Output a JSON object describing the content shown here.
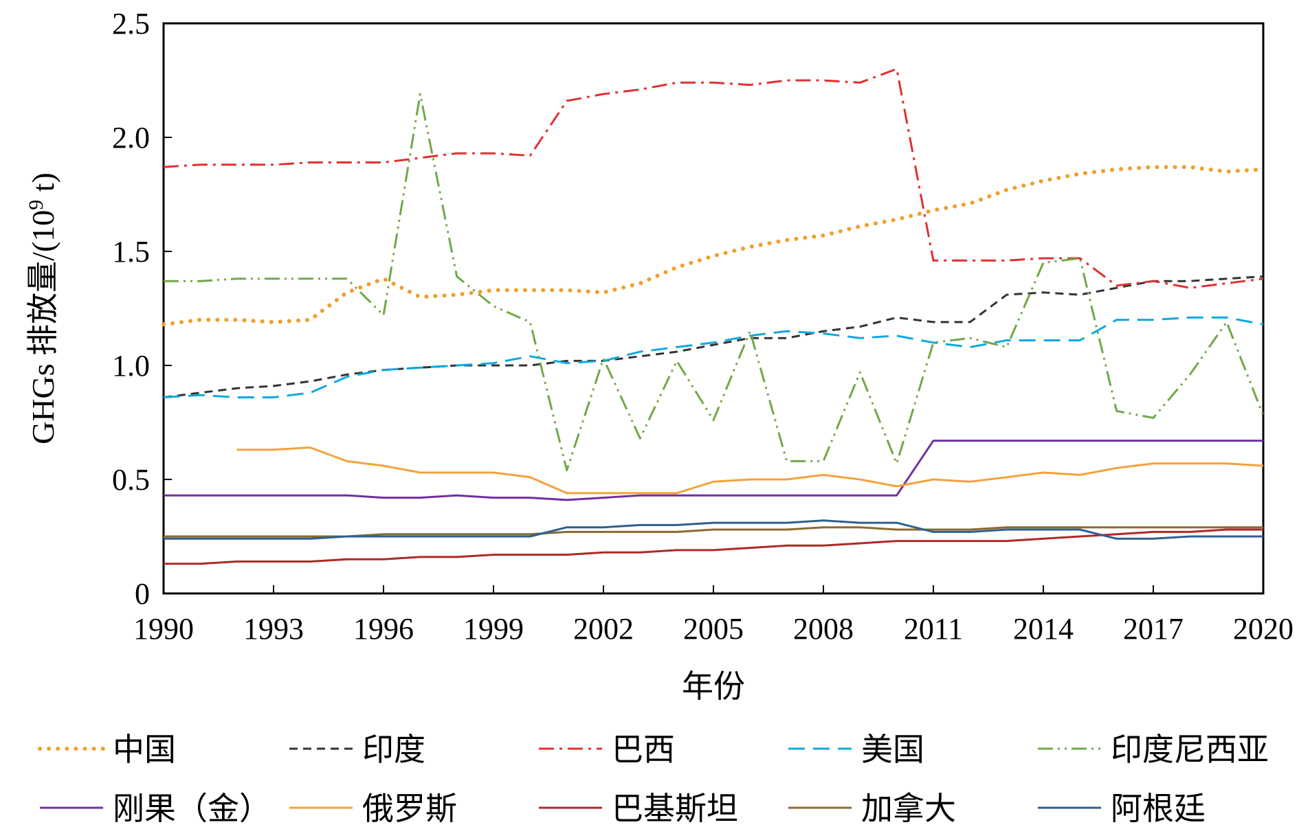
{
  "chart_data": {
    "type": "line",
    "xlabel": "年份",
    "ylabel_prefix": "GHGs 排放量/(10",
    "ylabel_sup": "9",
    "ylabel_suffix": " t)",
    "xlim": [
      1990,
      2020
    ],
    "ylim": [
      0,
      2.5
    ],
    "xticks": [
      "1990",
      "1993",
      "1996",
      "1999",
      "2002",
      "2005",
      "2008",
      "2011",
      "2014",
      "2017",
      "2020"
    ],
    "yticks": [
      "0",
      "0.5",
      "1.0",
      "1.5",
      "2.0",
      "2.5"
    ],
    "grid": false,
    "legend_position": "bottom",
    "x": [
      1990,
      1991,
      1992,
      1993,
      1994,
      1995,
      1996,
      1997,
      1998,
      1999,
      2000,
      2001,
      2002,
      2003,
      2004,
      2005,
      2006,
      2007,
      2008,
      2009,
      2010,
      2011,
      2012,
      2013,
      2014,
      2015,
      2016,
      2017,
      2018,
      2019,
      2020
    ],
    "series": [
      {
        "name": "中国",
        "color": "#F0A030",
        "dash": "dot",
        "values": [
          1.18,
          1.2,
          1.2,
          1.19,
          1.2,
          1.32,
          1.38,
          1.3,
          1.31,
          1.33,
          1.33,
          1.33,
          1.32,
          1.36,
          1.43,
          1.48,
          1.52,
          1.55,
          1.57,
          1.61,
          1.64,
          1.68,
          1.71,
          1.77,
          1.81,
          1.84,
          1.86,
          1.87,
          1.87,
          1.85,
          1.86
        ]
      },
      {
        "name": "印度",
        "color": "#333333",
        "dash": "dash",
        "values": [
          0.86,
          0.88,
          0.9,
          0.91,
          0.93,
          0.96,
          0.98,
          0.99,
          1.0,
          1.0,
          1.0,
          1.02,
          1.02,
          1.04,
          1.06,
          1.09,
          1.12,
          1.12,
          1.15,
          1.17,
          1.21,
          1.19,
          1.19,
          1.31,
          1.32,
          1.31,
          1.34,
          1.37,
          1.37,
          1.38,
          1.39
        ]
      },
      {
        "name": "巴西",
        "color": "#E03030",
        "dash": "dashdot",
        "values": [
          1.87,
          1.88,
          1.88,
          1.88,
          1.89,
          1.89,
          1.89,
          1.91,
          1.93,
          1.93,
          1.92,
          2.16,
          2.19,
          2.21,
          2.24,
          2.24,
          2.23,
          2.25,
          2.25,
          2.24,
          2.3,
          1.46,
          1.46,
          1.46,
          1.47,
          1.47,
          1.35,
          1.37,
          1.34,
          1.36,
          1.38
        ]
      },
      {
        "name": "美国",
        "color": "#10A8E0",
        "dash": "longdash",
        "values": [
          0.86,
          0.87,
          0.86,
          0.86,
          0.88,
          0.95,
          0.98,
          0.99,
          1.0,
          1.01,
          1.04,
          1.01,
          1.02,
          1.06,
          1.08,
          1.1,
          1.13,
          1.15,
          1.14,
          1.12,
          1.13,
          1.1,
          1.08,
          1.11,
          1.11,
          1.11,
          1.2,
          1.2,
          1.21,
          1.21,
          1.18
        ]
      },
      {
        "name": "印度尼西亚",
        "color": "#70A848",
        "dash": "dashdotdot",
        "values": [
          1.37,
          1.37,
          1.38,
          1.38,
          1.38,
          1.38,
          1.22,
          2.19,
          1.39,
          1.26,
          1.19,
          0.54,
          1.03,
          0.68,
          1.02,
          0.76,
          1.15,
          0.58,
          0.58,
          0.97,
          0.57,
          1.1,
          1.12,
          1.08,
          1.45,
          1.47,
          0.8,
          0.77,
          0.96,
          1.19,
          0.78
        ]
      },
      {
        "name": "刚果（金）",
        "color": "#7030A0",
        "dash": "solid",
        "values": [
          0.43,
          0.43,
          0.43,
          0.43,
          0.43,
          0.43,
          0.42,
          0.42,
          0.43,
          0.42,
          0.42,
          0.41,
          0.42,
          0.43,
          0.43,
          0.43,
          0.43,
          0.43,
          0.43,
          0.43,
          0.43,
          0.67,
          0.67,
          0.67,
          0.67,
          0.67,
          0.67,
          0.67,
          0.67,
          0.67,
          0.67
        ]
      },
      {
        "name": "俄罗斯",
        "color": "#F4A23A",
        "dash": "solid",
        "values": [
          null,
          null,
          0.63,
          0.63,
          0.64,
          0.58,
          0.56,
          0.53,
          0.53,
          0.53,
          0.51,
          0.44,
          0.44,
          0.44,
          0.44,
          0.49,
          0.5,
          0.5,
          0.52,
          0.5,
          0.47,
          0.5,
          0.49,
          0.51,
          0.53,
          0.52,
          0.55,
          0.57,
          0.57,
          0.57,
          0.56
        ]
      },
      {
        "name": "巴基斯坦",
        "color": "#B02828",
        "dash": "solid",
        "values": [
          0.13,
          0.13,
          0.14,
          0.14,
          0.14,
          0.15,
          0.15,
          0.16,
          0.16,
          0.17,
          0.17,
          0.17,
          0.18,
          0.18,
          0.19,
          0.19,
          0.2,
          0.21,
          0.21,
          0.22,
          0.23,
          0.23,
          0.23,
          0.23,
          0.24,
          0.25,
          0.26,
          0.27,
          0.27,
          0.28,
          0.28
        ]
      },
      {
        "name": "加拿大",
        "color": "#8B6A30",
        "dash": "solid",
        "values": [
          0.25,
          0.25,
          0.25,
          0.25,
          0.25,
          0.25,
          0.26,
          0.26,
          0.26,
          0.26,
          0.26,
          0.27,
          0.27,
          0.27,
          0.27,
          0.28,
          0.28,
          0.28,
          0.29,
          0.29,
          0.28,
          0.28,
          0.28,
          0.29,
          0.29,
          0.29,
          0.29,
          0.29,
          0.29,
          0.29,
          0.29
        ]
      },
      {
        "name": "阿根廷",
        "color": "#2F5F8F",
        "dash": "solid",
        "values": [
          0.24,
          0.24,
          0.24,
          0.24,
          0.24,
          0.25,
          0.25,
          0.25,
          0.25,
          0.25,
          0.25,
          0.29,
          0.29,
          0.3,
          0.3,
          0.31,
          0.31,
          0.31,
          0.32,
          0.31,
          0.31,
          0.27,
          0.27,
          0.28,
          0.28,
          0.28,
          0.24,
          0.24,
          0.25,
          0.25,
          0.25
        ]
      }
    ]
  }
}
